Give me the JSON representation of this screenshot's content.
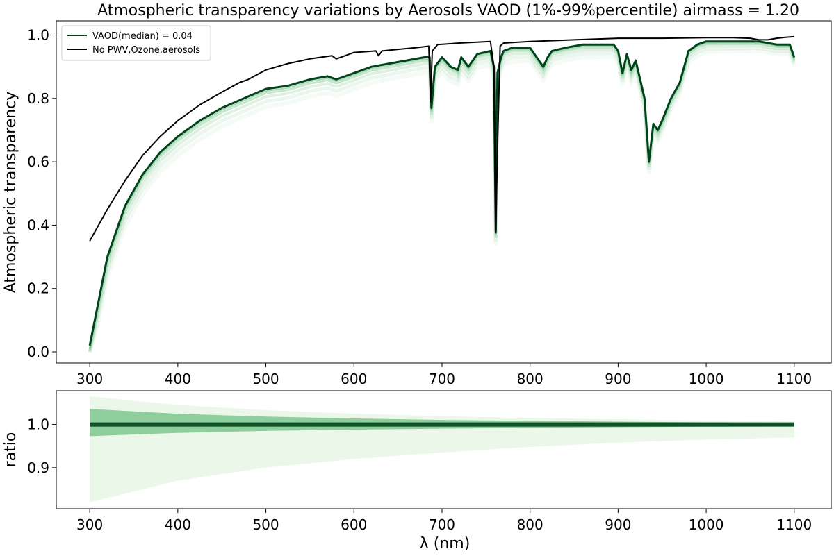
{
  "chart_data": [
    {
      "type": "line",
      "title": "Atmospheric transparency variations by Aerosols VAOD (1%-99%percentile) airmass = 1.20",
      "xlabel": "",
      "ylabel": "Atmospheric transparency",
      "xlim": [
        262,
        1142
      ],
      "ylim": [
        -0.035,
        1.045
      ],
      "xticks": [
        300,
        400,
        500,
        600,
        700,
        800,
        900,
        1000,
        1100
      ],
      "yticks": [
        0.0,
        0.2,
        0.4,
        0.6,
        0.8,
        1.0
      ],
      "grid": false,
      "legend_position": "top-left",
      "band": {
        "description_shown": "family of VAOD curves between 1% and 99% percentiles",
        "color": "#00441b",
        "fill_color": "#74c476"
      },
      "series": [
        {
          "name": "VAOD(median) = 0.04",
          "color": "#00441b",
          "x": [
            300,
            310,
            320,
            340,
            360,
            380,
            400,
            425,
            450,
            475,
            500,
            525,
            550,
            570,
            580,
            600,
            620,
            640,
            660,
            680,
            686,
            688,
            692,
            700,
            710,
            718,
            722,
            730,
            740,
            755,
            759,
            761,
            763,
            767,
            770,
            780,
            800,
            815,
            820,
            825,
            840,
            860,
            880,
            895,
            900,
            905,
            910,
            915,
            920,
            925,
            930,
            935,
            940,
            945,
            950,
            960,
            970,
            980,
            990,
            1000,
            1020,
            1040,
            1060,
            1080,
            1095,
            1100
          ],
          "y": [
            0.02,
            0.16,
            0.3,
            0.46,
            0.56,
            0.63,
            0.68,
            0.73,
            0.77,
            0.8,
            0.83,
            0.84,
            0.86,
            0.87,
            0.86,
            0.88,
            0.9,
            0.91,
            0.92,
            0.93,
            0.93,
            0.77,
            0.9,
            0.93,
            0.9,
            0.89,
            0.93,
            0.9,
            0.94,
            0.95,
            0.9,
            0.38,
            0.88,
            0.93,
            0.95,
            0.96,
            0.96,
            0.9,
            0.93,
            0.95,
            0.96,
            0.97,
            0.97,
            0.97,
            0.95,
            0.88,
            0.94,
            0.89,
            0.92,
            0.86,
            0.8,
            0.6,
            0.72,
            0.7,
            0.73,
            0.8,
            0.85,
            0.95,
            0.97,
            0.98,
            0.98,
            0.98,
            0.98,
            0.97,
            0.97,
            0.93
          ]
        },
        {
          "name": "No PWV,Ozone,aerosols",
          "color": "#000000",
          "x": [
            300,
            310,
            320,
            340,
            360,
            380,
            400,
            425,
            450,
            470,
            480,
            500,
            525,
            550,
            575,
            580,
            600,
            625,
            628,
            632,
            650,
            670,
            685,
            687,
            689,
            695,
            720,
            755,
            759,
            761,
            763,
            766,
            770,
            800,
            850,
            900,
            950,
            1000,
            1030,
            1050,
            1060,
            1070,
            1080,
            1090,
            1100
          ],
          "y": [
            0.35,
            0.4,
            0.45,
            0.54,
            0.62,
            0.68,
            0.73,
            0.78,
            0.82,
            0.85,
            0.86,
            0.89,
            0.91,
            0.925,
            0.935,
            0.925,
            0.945,
            0.95,
            0.935,
            0.95,
            0.955,
            0.96,
            0.965,
            0.79,
            0.95,
            0.97,
            0.975,
            0.98,
            0.9,
            0.375,
            0.64,
            0.965,
            0.975,
            0.98,
            0.985,
            0.99,
            0.99,
            0.992,
            0.992,
            0.99,
            0.985,
            0.985,
            0.99,
            0.993,
            0.995
          ]
        }
      ],
      "legend": [
        {
          "label": "VAOD(median) = 0.04",
          "color": "#00441b"
        },
        {
          "label": "No PWV,Ozone,aerosols",
          "color": "#000000"
        }
      ]
    },
    {
      "type": "line",
      "title": "",
      "xlabel": "λ (nm)",
      "ylabel": "ratio",
      "xlim": [
        262,
        1142
      ],
      "ylim": [
        0.805,
        1.078
      ],
      "xticks": [
        300,
        400,
        500,
        600,
        700,
        800,
        900,
        1000,
        1100
      ],
      "yticks": [
        0.9,
        1.0
      ],
      "grid": false,
      "series": [
        {
          "name": "",
          "x": [
            300,
            1100
          ],
          "y": [
            1.0,
            1.0
          ],
          "color": "#00441b"
        }
      ],
      "band": {
        "x": [
          300,
          400,
          500,
          600,
          700,
          800,
          900,
          1000,
          1100
        ],
        "upper": [
          1.065,
          1.045,
          1.033,
          1.025,
          1.019,
          1.015,
          1.012,
          1.009,
          1.007
        ],
        "lower": [
          0.82,
          0.87,
          0.9,
          0.92,
          0.935,
          0.948,
          0.958,
          0.965,
          0.97
        ],
        "color": "#74c476"
      }
    }
  ],
  "tick_text": {
    "x": [
      "300",
      "400",
      "500",
      "600",
      "700",
      "800",
      "900",
      "1000",
      "1100"
    ],
    "y_top": [
      "0.0",
      "0.2",
      "0.4",
      "0.6",
      "0.8",
      "1.0"
    ],
    "y_bottom": [
      "0.9",
      "1.0"
    ]
  }
}
